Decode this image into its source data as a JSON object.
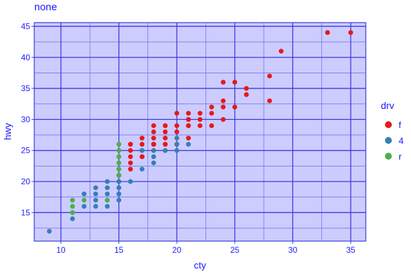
{
  "colors": {
    "panel": "#ccccff",
    "grid_major": "#3b3bdd",
    "grid_minor": "#6a6ae6",
    "text": "#1a1aff"
  },
  "chart_data": {
    "type": "scatter",
    "title": "none",
    "xlabel": "cty",
    "ylabel": "hwy",
    "xlim": [
      7.7,
      36.3
    ],
    "ylim": [
      10.4,
      45.6
    ],
    "x_ticks": [
      10,
      15,
      20,
      25,
      30,
      35
    ],
    "y_ticks": [
      15,
      20,
      25,
      30,
      35,
      40,
      45
    ],
    "grid": true,
    "legend": {
      "title": "drv",
      "position": "right"
    },
    "series": [
      {
        "name": "f",
        "color": "#e41a1c",
        "points": [
          [
            18,
            29
          ],
          [
            21,
            29
          ],
          [
            20,
            31
          ],
          [
            21,
            30
          ],
          [
            19,
            26
          ],
          [
            18,
            26
          ],
          [
            18,
            27
          ],
          [
            18,
            26
          ],
          [
            18,
            25
          ],
          [
            18,
            28
          ],
          [
            16,
            26
          ],
          [
            17,
            27
          ],
          [
            17,
            24
          ],
          [
            16,
            25
          ],
          [
            19,
            27
          ],
          [
            21,
            30
          ],
          [
            19,
            29
          ],
          [
            18,
            26
          ],
          [
            19,
            26
          ],
          [
            17,
            26
          ],
          [
            16,
            23
          ],
          [
            16,
            22
          ],
          [
            17,
            25
          ],
          [
            16,
            24
          ],
          [
            23,
            32
          ],
          [
            23,
            29
          ],
          [
            21,
            27
          ],
          [
            24,
            30
          ],
          [
            22,
            29
          ],
          [
            23,
            31
          ],
          [
            24,
            32
          ],
          [
            24,
            36
          ],
          [
            26,
            35
          ],
          [
            26,
            34
          ],
          [
            28,
            37
          ],
          [
            29,
            41
          ],
          [
            33,
            44
          ],
          [
            35,
            44
          ],
          [
            28,
            33
          ],
          [
            25,
            36
          ],
          [
            25,
            32
          ],
          [
            24,
            33
          ],
          [
            22,
            31
          ],
          [
            21,
            31
          ],
          [
            20,
            28
          ],
          [
            20,
            29
          ],
          [
            22,
            30
          ],
          [
            15,
            21
          ],
          [
            19,
            25
          ],
          [
            20,
            26
          ],
          [
            17,
            24
          ],
          [
            21,
            29
          ],
          [
            19,
            29
          ],
          [
            16,
            26
          ],
          [
            19,
            28
          ]
        ]
      },
      {
        "name": "4",
        "color": "#377eb8",
        "points": [
          [
            9,
            12
          ],
          [
            11,
            14
          ],
          [
            11,
            15
          ],
          [
            12,
            16
          ],
          [
            12,
            18
          ],
          [
            13,
            16
          ],
          [
            13,
            17
          ],
          [
            13,
            18
          ],
          [
            13,
            19
          ],
          [
            14,
            17
          ],
          [
            14,
            18
          ],
          [
            14,
            19
          ],
          [
            14,
            20
          ],
          [
            15,
            17
          ],
          [
            15,
            18
          ],
          [
            15,
            19
          ],
          [
            15,
            20
          ],
          [
            16,
            20
          ],
          [
            17,
            22
          ],
          [
            18,
            23
          ],
          [
            18,
            24
          ],
          [
            19,
            25
          ],
          [
            20,
            25
          ],
          [
            20,
            26
          ],
          [
            20,
            27
          ],
          [
            21,
            26
          ],
          [
            17,
            25
          ],
          [
            14,
            16
          ],
          [
            18,
            25
          ]
        ]
      },
      {
        "name": "r",
        "color": "#4daf4a",
        "points": [
          [
            11,
            15
          ],
          [
            11,
            16
          ],
          [
            11,
            17
          ],
          [
            12,
            17
          ],
          [
            14,
            17
          ],
          [
            15,
            21
          ],
          [
            15,
            22
          ],
          [
            15,
            23
          ],
          [
            15,
            24
          ],
          [
            15,
            25
          ],
          [
            15,
            26
          ]
        ]
      }
    ]
  }
}
